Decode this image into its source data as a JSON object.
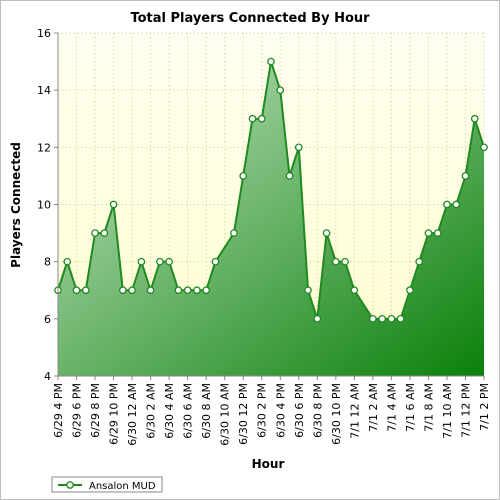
{
  "chart_data": {
    "type": "area",
    "title": "Total Players Connected By Hour",
    "xlabel": "Hour",
    "ylabel": "Players Connected",
    "ylim": [
      4,
      16
    ],
    "yticks": [
      "4",
      "6",
      "8",
      "10",
      "12",
      "14",
      "16"
    ],
    "grid": true,
    "legend_position": "bottom-left",
    "categories": [
      "6/29 4 PM",
      "6/29 5 PM",
      "6/29 6 PM",
      "6/29 7 PM",
      "6/29 8 PM",
      "6/29 9 PM",
      "6/29 10 PM",
      "6/29 11 PM",
      "6/30 12 AM",
      "6/30 1 AM",
      "6/30 2 AM",
      "6/30 3 AM",
      "6/30 4 AM",
      "6/30 5 AM",
      "6/30 6 AM",
      "6/30 7 AM",
      "6/30 8 AM",
      "6/30 9 AM",
      "6/30 10 AM",
      "6/30 11 AM",
      "6/30 12 PM",
      "6/30 1 PM",
      "6/30 2 PM",
      "6/30 3 PM",
      "6/30 4 PM",
      "6/30 5 PM",
      "6/30 6 PM",
      "6/30 7 PM",
      "6/30 8 PM",
      "6/30 9 PM",
      "6/30 10 PM",
      "6/30 11 PM",
      "7/1 12 AM",
      "7/1 1 AM",
      "7/1 2 AM",
      "7/1 3 AM",
      "7/1 4 AM",
      "7/1 5 AM",
      "7/1 6 AM",
      "7/1 7 AM",
      "7/1 8 AM",
      "7/1 9 AM",
      "7/1 10 AM",
      "7/1 11 AM",
      "7/1 12 PM",
      "7/1 1 PM",
      "7/1 2 PM"
    ],
    "tick_labels": [
      "6/29 4 PM",
      "6/29 6 PM",
      "6/29 8 PM",
      "6/29 10 PM",
      "6/30 12 AM",
      "6/30 2 AM",
      "6/30 4 AM",
      "6/30 6 AM",
      "6/30 8 AM",
      "6/30 10 AM",
      "6/30 12 PM",
      "6/30 2 PM",
      "6/30 4 PM",
      "6/30 6 PM",
      "6/30 8 PM",
      "6/30 10 PM",
      "7/1 12 AM",
      "7/1 2 AM",
      "7/1 4 AM",
      "7/1 6 AM",
      "7/1 8 AM",
      "7/1 10 AM",
      "7/1 12 PM",
      "7/1 2 PM"
    ],
    "series": [
      {
        "name": "Ansalon MUD",
        "values": [
          7,
          8,
          7,
          7,
          9,
          9,
          10,
          7,
          7,
          8,
          7,
          8,
          8,
          7,
          7,
          7,
          7,
          8,
          null,
          9,
          11,
          13,
          13,
          15,
          14,
          11,
          12,
          7,
          6,
          9,
          8,
          8,
          7,
          null,
          6,
          6,
          6,
          6,
          7,
          8,
          9,
          9,
          10,
          10,
          11,
          13,
          12
        ]
      }
    ],
    "colors": {
      "line": "#1f8a1f",
      "fill_light": "#c8e6c8",
      "fill_dark": "#0a800a",
      "plot_bg_top": "#fffff0",
      "plot_bg_bottom": "#fffdd0",
      "grid": "#c8c8a0"
    }
  }
}
